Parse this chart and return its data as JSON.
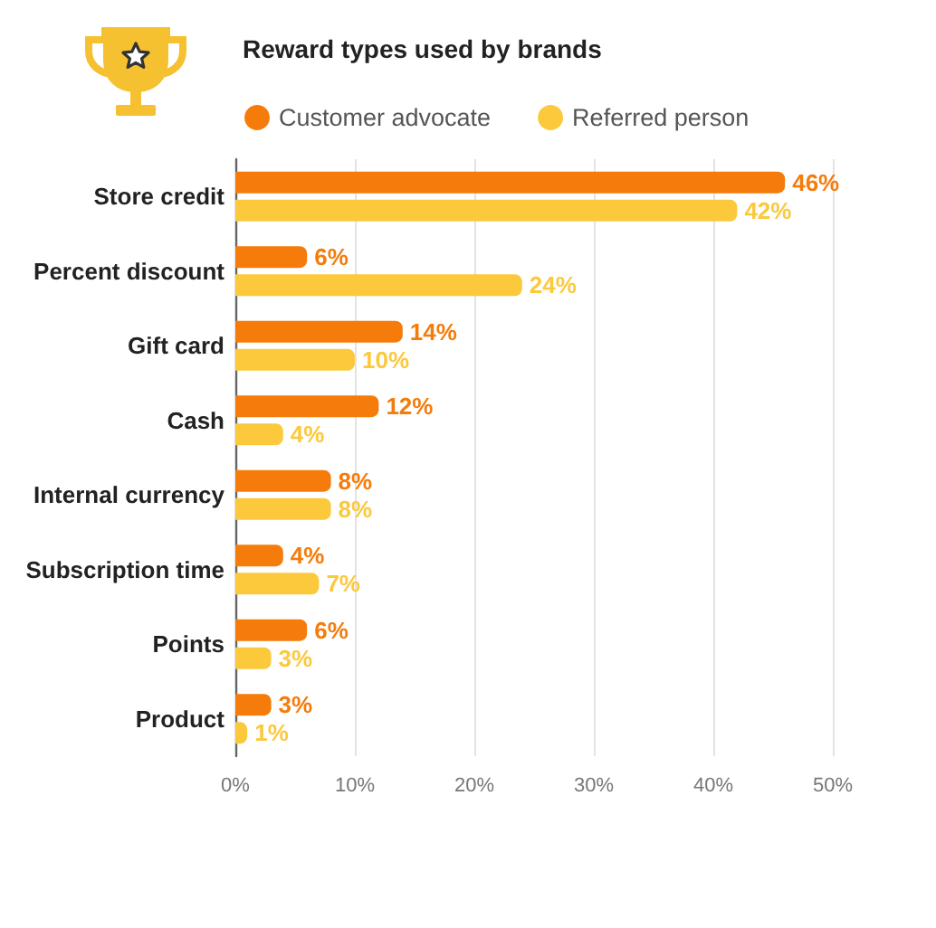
{
  "chart_data": {
    "type": "bar",
    "orientation": "horizontal",
    "title": "Reward types used by brands",
    "categories": [
      "Store credit",
      "Percent discount",
      "Gift card",
      "Cash",
      "Internal currency",
      "Subscription time",
      "Points",
      "Product"
    ],
    "series": [
      {
        "name": "Customer advocate",
        "color": "#f57c0a",
        "values": [
          46,
          6,
          14,
          12,
          8,
          4,
          6,
          3
        ],
        "value_labels": [
          "46%",
          "6%",
          "14%",
          "12%",
          "8%",
          "4%",
          "6%",
          "3%"
        ]
      },
      {
        "name": "Referred person",
        "color": "#fcc93c",
        "values": [
          42,
          24,
          10,
          4,
          8,
          7,
          3,
          1
        ],
        "value_labels": [
          "42%",
          "24%",
          "10%",
          "4%",
          "8%",
          "7%",
          "3%",
          "1%"
        ]
      }
    ],
    "xlim": [
      0,
      50
    ],
    "xticks": [
      {
        "value": 0,
        "label": "0%"
      },
      {
        "value": 10,
        "label": "10%"
      },
      {
        "value": 20,
        "label": "20%"
      },
      {
        "value": 30,
        "label": "30%"
      },
      {
        "value": 40,
        "label": "40%"
      },
      {
        "value": 50,
        "label": "50%"
      }
    ],
    "grid": "x",
    "legend": "top left"
  }
}
